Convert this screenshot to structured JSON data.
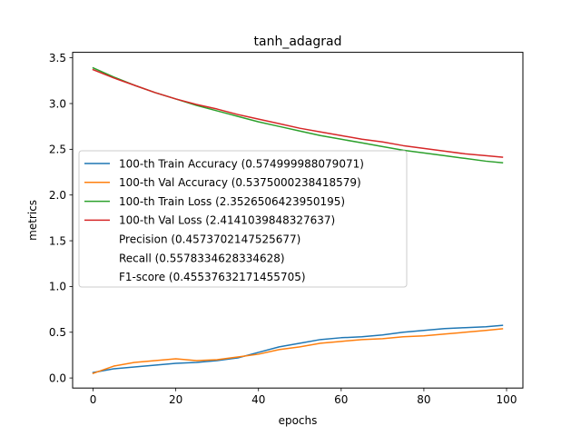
{
  "chart_data": {
    "type": "line",
    "title": "tanh_adagrad",
    "xlabel": "epochs",
    "ylabel": "metrics",
    "xlim": [
      -4.95,
      103.95
    ],
    "ylim": [
      -0.11,
      3.56
    ],
    "xticks": [
      0,
      20,
      40,
      60,
      80,
      100
    ],
    "xtick_labels": [
      "0",
      "20",
      "40",
      "60",
      "80",
      "100"
    ],
    "yticks": [
      0.0,
      0.5,
      1.0,
      1.5,
      2.0,
      2.5,
      3.0,
      3.5
    ],
    "ytick_labels": [
      "0.0",
      "0.5",
      "1.0",
      "1.5",
      "2.0",
      "2.5",
      "3.0",
      "3.5"
    ],
    "grid": false,
    "legend_position": "center-left",
    "x": [
      0,
      5,
      10,
      15,
      20,
      25,
      30,
      35,
      40,
      45,
      50,
      55,
      60,
      65,
      70,
      75,
      80,
      85,
      90,
      95,
      99
    ],
    "series": [
      {
        "name": "100-th Train Accuracy (0.574999988079071)",
        "color": "#1f77b4",
        "values": [
          0.06,
          0.1,
          0.12,
          0.14,
          0.16,
          0.17,
          0.19,
          0.22,
          0.28,
          0.34,
          0.38,
          0.42,
          0.44,
          0.45,
          0.47,
          0.5,
          0.52,
          0.54,
          0.55,
          0.56,
          0.575
        ]
      },
      {
        "name": "100-th Val Accuracy (0.5375000238418579)",
        "color": "#ff7f0e",
        "values": [
          0.05,
          0.13,
          0.17,
          0.19,
          0.21,
          0.19,
          0.2,
          0.23,
          0.26,
          0.31,
          0.34,
          0.38,
          0.4,
          0.42,
          0.43,
          0.45,
          0.46,
          0.48,
          0.5,
          0.52,
          0.5375
        ]
      },
      {
        "name": "100-th Train Loss (2.3526506423950195)",
        "color": "#2ca02c",
        "values": [
          3.39,
          3.29,
          3.2,
          3.12,
          3.05,
          2.98,
          2.92,
          2.86,
          2.8,
          2.75,
          2.7,
          2.65,
          2.61,
          2.57,
          2.53,
          2.49,
          2.46,
          2.43,
          2.4,
          2.37,
          2.353
        ]
      },
      {
        "name": "100-th Val Loss (2.4141039848327637)",
        "color": "#d62728",
        "values": [
          3.37,
          3.28,
          3.2,
          3.12,
          3.05,
          2.99,
          2.94,
          2.88,
          2.83,
          2.78,
          2.73,
          2.69,
          2.65,
          2.61,
          2.58,
          2.54,
          2.51,
          2.48,
          2.45,
          2.43,
          2.414
        ]
      }
    ],
    "legend_extra": [
      "Precision (0.4573702147525677)",
      "Recall (0.5578334628334628)",
      "F1-score (0.45537632171455705)"
    ]
  }
}
